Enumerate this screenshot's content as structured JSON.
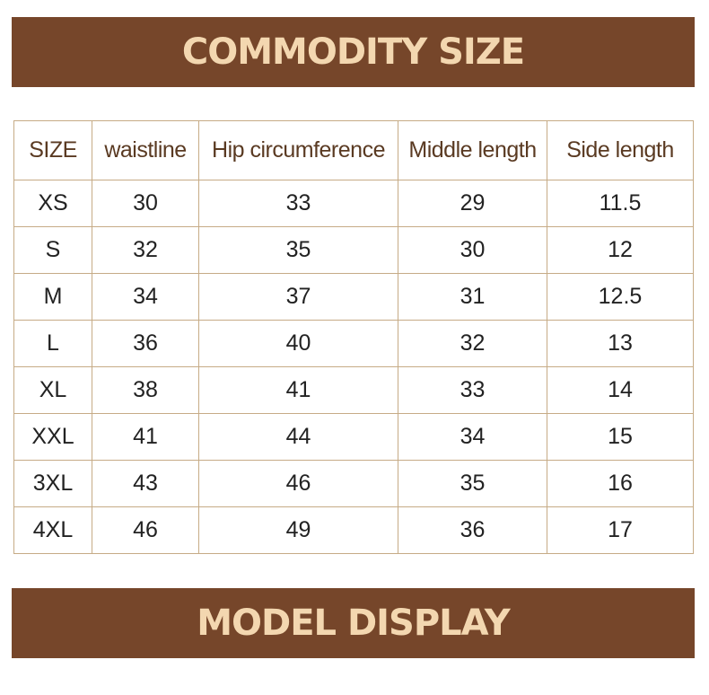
{
  "banners": {
    "top_title": "COMMODITY SIZE",
    "bottom_title": "MODEL DISPLAY"
  },
  "size_table": {
    "headers": [
      "SIZE",
      "waistline",
      "Hip circumference",
      "Middle length",
      "Side length"
    ],
    "rows": [
      [
        "XS",
        "30",
        "33",
        "29",
        "11.5"
      ],
      [
        "S",
        "32",
        "35",
        "30",
        "12"
      ],
      [
        "M",
        "34",
        "37",
        "31",
        "12.5"
      ],
      [
        "L",
        "36",
        "40",
        "32",
        "13"
      ],
      [
        "XL",
        "38",
        "41",
        "33",
        "14"
      ],
      [
        "XXL",
        "41",
        "44",
        "34",
        "15"
      ],
      [
        "3XL",
        "43",
        "46",
        "35",
        "16"
      ],
      [
        "4XL",
        "46",
        "49",
        "36",
        "17"
      ]
    ]
  },
  "colors": {
    "banner_background": "#76462a",
    "banner_text": "#f3d7b0",
    "table_border": "#c6ab86",
    "header_text": "#5a3a22"
  }
}
